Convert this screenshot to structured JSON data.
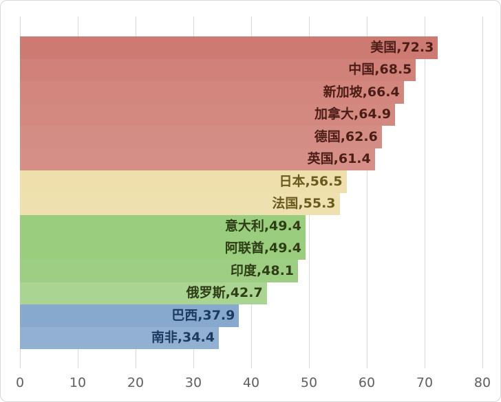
{
  "chart_data": {
    "type": "bar",
    "orientation": "horizontal",
    "title": "",
    "xlabel": "",
    "ylabel": "",
    "xlim": [
      0,
      80
    ],
    "grid": true,
    "gridline_color": "#d9d9d9",
    "axis_label_color": "#5f5f5f",
    "x_ticks": [
      0,
      10,
      20,
      30,
      40,
      50,
      60,
      70,
      80
    ],
    "categories": [
      "美国",
      "中国",
      "新加坡",
      "加拿大",
      "德国",
      "英国",
      "日本",
      "法国",
      "意大利",
      "阿联酋",
      "印度",
      "俄罗斯",
      "巴西",
      "南非"
    ],
    "values": [
      72.3,
      68.5,
      66.4,
      64.9,
      62.6,
      61.4,
      56.5,
      55.3,
      49.4,
      49.4,
      48.1,
      42.7,
      37.9,
      34.4
    ],
    "color_groups": {
      "red_base": "#c96e65",
      "yellow_base": "#e7d28b",
      "green_base": "#5dae30",
      "blue_base": "#014997"
    },
    "points": [
      {
        "category": "美国",
        "value": 72.3,
        "label": "美国,72.3",
        "bar_color": "#cd7b72",
        "text_color": "#4c1d17"
      },
      {
        "category": "中国",
        "value": 68.5,
        "label": "中国,68.5",
        "bar_color": "#d0827a",
        "text_color": "#4c1d17"
      },
      {
        "category": "新加坡",
        "value": 66.4,
        "label": "新加坡,66.4",
        "bar_color": "#d2867d",
        "text_color": "#4c1d17"
      },
      {
        "category": "加拿大",
        "value": 64.9,
        "label": "加拿大,64.9",
        "bar_color": "#d38980",
        "text_color": "#4c1d17"
      },
      {
        "category": "德国",
        "value": 62.6,
        "label": "德国,62.6",
        "bar_color": "#d48d85",
        "text_color": "#4c1d17"
      },
      {
        "category": "英国",
        "value": 61.4,
        "label": "英国,61.4",
        "bar_color": "#d58f87",
        "text_color": "#4c1d17"
      },
      {
        "category": "日本",
        "value": 56.5,
        "label": "日本,56.5",
        "bar_color": "#eedfad",
        "text_color": "#6b591d"
      },
      {
        "category": "法国",
        "value": 55.3,
        "label": "法国,55.3",
        "bar_color": "#eee0af",
        "text_color": "#6b591d"
      },
      {
        "category": "意大利",
        "value": 49.4,
        "label": "意大利,49.4",
        "bar_color": "#9bcd7f",
        "text_color": "#2e3d15"
      },
      {
        "category": "阿联酋",
        "value": 49.4,
        "label": "阿联酋,49.4",
        "bar_color": "#9bcd7f",
        "text_color": "#2e3d15"
      },
      {
        "category": "印度",
        "value": 48.1,
        "label": "印度,48.1",
        "bar_color": "#9ece83",
        "text_color": "#2e3d15"
      },
      {
        "category": "俄罗斯",
        "value": 42.7,
        "label": "俄罗斯,42.7",
        "bar_color": "#a9d491",
        "text_color": "#2e3d15"
      },
      {
        "category": "巴西",
        "value": 37.9,
        "label": "巴西,37.9",
        "bar_color": "#87a9ce",
        "text_color": "#1b3a60"
      },
      {
        "category": "南非",
        "value": 34.4,
        "label": "南非,34.4",
        "bar_color": "#92b1d2",
        "text_color": "#1b3a60"
      }
    ]
  }
}
